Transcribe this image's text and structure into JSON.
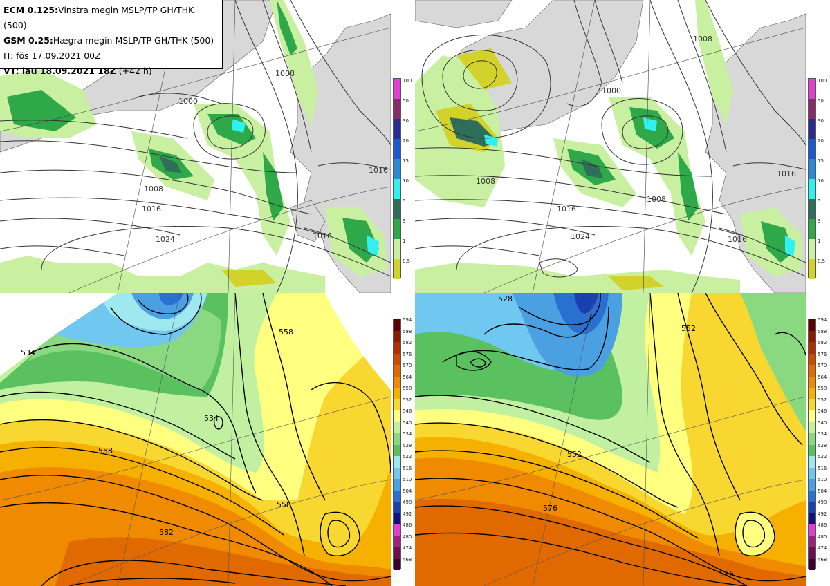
{
  "info": {
    "line1_bold": "ECM 0.125:",
    "line1_rest": "Vinstra megin MSLP/TP GH/THK (500)",
    "line2_bold": "GSM 0.25:",
    "line2_rest": "Hægra megin MSLP/TP GH/THK (500)",
    "line3": "IT: fös 17.09.2021 00Z",
    "line4_bold": "VT: lau 18.09.2021 18Z",
    "line4_rest": "(+42 h)"
  },
  "precip_scale": {
    "levels": [
      "100",
      "50",
      "30",
      "20",
      "15",
      "10",
      "5",
      "3",
      "1",
      "0.5"
    ],
    "colors": [
      "#e040d0",
      "#8a2a6a",
      "#2a2a90",
      "#1a5ad0",
      "#2a8ad8",
      "#30f0f0",
      "#2f6f5a",
      "#2fa84a",
      "#c8f0a0",
      "#d2d22a"
    ]
  },
  "thickness_scale": {
    "levels": [
      "594",
      "588",
      "582",
      "576",
      "570",
      "564",
      "558",
      "552",
      "546",
      "540",
      "534",
      "528",
      "522",
      "516",
      "510",
      "504",
      "498",
      "492",
      "486",
      "480",
      "474",
      "468"
    ],
    "colors": [
      "#5a0000",
      "#8a1a00",
      "#b03000",
      "#d04a00",
      "#e06a00",
      "#f08a00",
      "#f5b000",
      "#f8d830",
      "#ffff80",
      "#c0f0a0",
      "#8ad880",
      "#5ac060",
      "#a0e8f0",
      "#70c8f0",
      "#4aa0e0",
      "#2a70d0",
      "#1a40b0",
      "#101080",
      "#e040d0",
      "#a02080",
      "#6a1050",
      "#3a0030"
    ]
  },
  "panels": {
    "top_left": {
      "isobars": [
        "1008",
        "1016",
        "1024",
        "1016",
        "1000",
        "1008",
        "1016"
      ]
    },
    "top_right": {
      "isobars": [
        "1008",
        "1016",
        "1024",
        "1016",
        "1008",
        "1016",
        "1008",
        "1000"
      ]
    },
    "bottom_left": {
      "heights": [
        "558",
        "558",
        "534",
        "558",
        "582",
        "534"
      ]
    },
    "bottom_right": {
      "heights": [
        "552",
        "576",
        "552",
        "576",
        "528"
      ]
    }
  }
}
